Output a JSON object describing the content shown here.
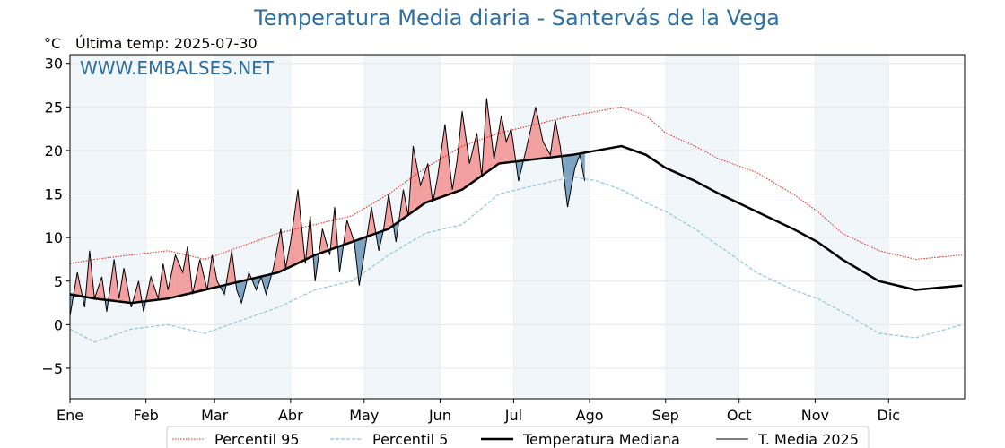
{
  "chart_data": {
    "type": "line",
    "title": "Temperatura Media diaria - Santervás de la Vega",
    "unit_label": "°C",
    "last_temp_label": "Última temp: 2025-07-30",
    "watermark": "WWW.EMBALSES.NET",
    "ylim": [
      -8.5,
      31
    ],
    "yticks": [
      -5,
      0,
      5,
      10,
      15,
      20,
      25,
      30
    ],
    "ytick_labels": [
      "−5",
      "0",
      "5",
      "10",
      "15",
      "20",
      "25",
      "30"
    ],
    "months": [
      "Ene",
      "Feb",
      "Mar",
      "Abr",
      "May",
      "Jun",
      "Jul",
      "Ago",
      "Sep",
      "Oct",
      "Nov",
      "Dic"
    ],
    "month_start_days": [
      0,
      31,
      59,
      90,
      120,
      151,
      181,
      212,
      243,
      273,
      304,
      334
    ],
    "days_in_year": 365,
    "grid": true,
    "legend_position": "bottom",
    "colors": {
      "p95": "#e8190f",
      "p5": "#8fc5d8",
      "median": "#000000",
      "current": "#000000",
      "above_fill": "#f2a0a0",
      "below_fill": "#7ea3c2",
      "band": "#e8f0f8",
      "title": "#2f6f9f"
    },
    "series": [
      {
        "name": "Percentil 95",
        "key": "p95",
        "style": "dotted-red",
        "x_days": [
          0,
          10,
          25,
          40,
          55,
          70,
          85,
          100,
          115,
          130,
          145,
          160,
          175,
          190,
          205,
          215,
          225,
          235,
          243,
          255,
          265,
          280,
          295,
          305,
          315,
          330,
          345,
          364
        ],
        "values": [
          7.0,
          7.5,
          8.0,
          8.5,
          7.5,
          9.0,
          10.5,
          11.5,
          12.5,
          15.0,
          18.0,
          20.5,
          22.0,
          23.0,
          24.0,
          24.5,
          25.0,
          24.0,
          22.0,
          20.5,
          19.0,
          17.5,
          15.0,
          13.0,
          10.5,
          8.5,
          7.5,
          8.0
        ]
      },
      {
        "name": "Percentil 5",
        "key": "p5",
        "style": "dashed-lightblue",
        "x_days": [
          0,
          10,
          25,
          40,
          55,
          70,
          85,
          100,
          115,
          130,
          145,
          160,
          175,
          190,
          205,
          215,
          225,
          235,
          243,
          255,
          265,
          280,
          295,
          305,
          315,
          330,
          345,
          364
        ],
        "values": [
          -0.5,
          -2.0,
          -0.5,
          0.0,
          -1.0,
          0.5,
          2.0,
          4.0,
          5.0,
          8.0,
          10.5,
          11.5,
          15.0,
          16.0,
          17.0,
          16.5,
          15.5,
          14.0,
          13.0,
          11.0,
          9.0,
          6.0,
          4.0,
          3.0,
          1.5,
          -1.0,
          -1.5,
          0.0
        ]
      },
      {
        "name": "Temperatura Mediana",
        "key": "median",
        "style": "thick-black",
        "x_days": [
          0,
          10,
          25,
          40,
          55,
          70,
          85,
          100,
          115,
          130,
          145,
          160,
          175,
          190,
          205,
          215,
          225,
          235,
          243,
          255,
          265,
          280,
          295,
          305,
          315,
          330,
          345,
          364
        ],
        "values": [
          3.5,
          3.0,
          2.5,
          3.0,
          4.0,
          5.0,
          6.0,
          8.0,
          9.5,
          11.0,
          14.0,
          15.5,
          18.5,
          19.0,
          19.5,
          20.0,
          20.5,
          19.5,
          18.0,
          16.5,
          15.0,
          13.0,
          11.0,
          9.5,
          7.5,
          5.0,
          4.0,
          4.5
        ]
      },
      {
        "name": "T. Media 2025",
        "key": "current",
        "style": "thin-black",
        "x_days": [
          0,
          3,
          6,
          8,
          10,
          13,
          15,
          18,
          20,
          22,
          25,
          28,
          30,
          33,
          36,
          38,
          40,
          43,
          46,
          48,
          50,
          53,
          56,
          58,
          60,
          63,
          66,
          68,
          70,
          73,
          76,
          78,
          80,
          83,
          86,
          88,
          90,
          93,
          96,
          98,
          100,
          103,
          106,
          108,
          110,
          113,
          116,
          118,
          120,
          123,
          126,
          128,
          130,
          133,
          136,
          138,
          140,
          143,
          146,
          148,
          150,
          153,
          156,
          158,
          160,
          163,
          166,
          168,
          170,
          173,
          176,
          178,
          180,
          183,
          186,
          188,
          190,
          193,
          196,
          198,
          200,
          203,
          206,
          208,
          210
        ],
        "values": [
          1.0,
          6.0,
          2.0,
          8.5,
          3.0,
          5.5,
          1.5,
          7.5,
          3.0,
          6.5,
          2.0,
          5.0,
          1.5,
          5.5,
          3.0,
          7.0,
          4.0,
          8.0,
          6.0,
          9.0,
          3.5,
          7.5,
          4.0,
          8.0,
          5.0,
          3.5,
          8.5,
          4.0,
          2.5,
          6.0,
          4.0,
          5.5,
          3.5,
          6.5,
          11.0,
          6.5,
          9.5,
          15.5,
          7.0,
          12.5,
          5.0,
          11.0,
          8.0,
          13.5,
          6.0,
          12.0,
          9.5,
          4.5,
          8.0,
          13.5,
          8.5,
          11.0,
          15.0,
          9.5,
          15.5,
          12.5,
          20.5,
          16.0,
          18.5,
          14.0,
          17.0,
          23.0,
          15.5,
          19.0,
          24.5,
          18.5,
          22.0,
          17.0,
          26.0,
          19.0,
          24.0,
          21.0,
          22.5,
          16.5,
          20.0,
          22.5,
          25.0,
          21.0,
          19.5,
          23.5,
          20.5,
          13.5,
          18.0,
          19.5,
          16.5
        ]
      }
    ],
    "legend": [
      "Percentil 95",
      "Percentil 5",
      "Temperatura Mediana",
      "T. Media 2025"
    ]
  }
}
